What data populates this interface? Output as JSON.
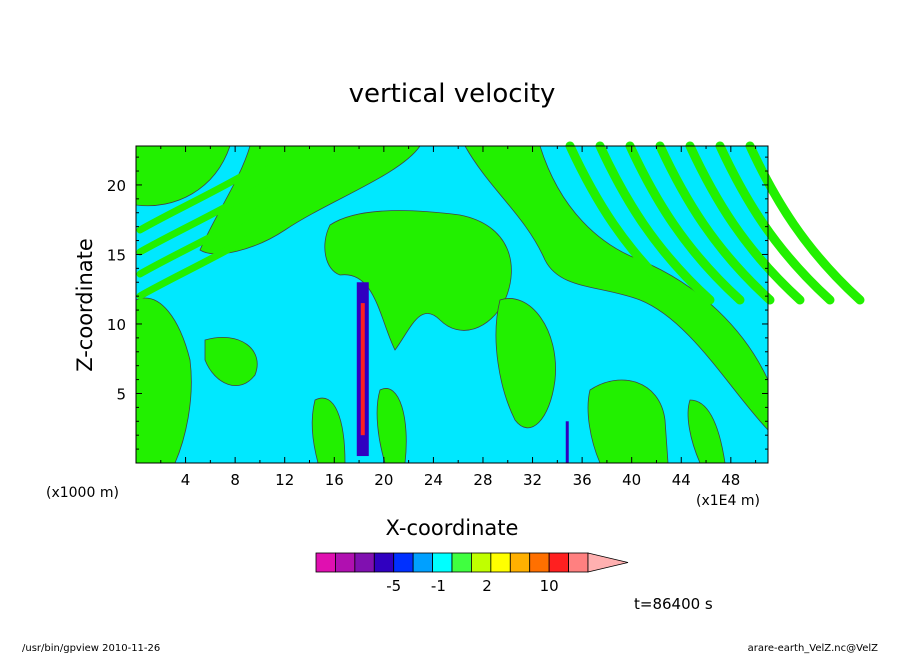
{
  "chart_data": {
    "type": "contour",
    "title": "vertical velocity",
    "xlabel": "X-coordinate",
    "ylabel": "Z-coordinate",
    "x_unit_left": "(x1000 m)",
    "x_unit_right": "(x1E4 m)",
    "xticks": [
      "4",
      "8",
      "12",
      "16",
      "20",
      "24",
      "28",
      "32",
      "36",
      "40",
      "44",
      "48"
    ],
    "yticks": [
      "5",
      "10",
      "15",
      "20"
    ],
    "xlim": [
      0,
      51
    ],
    "ylim": [
      0,
      22.8
    ],
    "colorbar": {
      "colors": [
        "#e010b0",
        "#b010b0",
        "#8010b0",
        "#3000c0",
        "#0030ff",
        "#00a0ff",
        "#00ffff",
        "#40ff40",
        "#c0ff00",
        "#ffff00",
        "#ffb000",
        "#ff7000",
        "#ff2020",
        "#ff8080",
        "#ffb0b0"
      ],
      "labels": [
        "-5",
        "-1",
        "2",
        "10"
      ],
      "label_positions": [
        -5,
        -1,
        2,
        10
      ]
    },
    "colors": {
      "background_field": "#00e8ff",
      "positive_field": "#22f000",
      "contour_line": "#444444"
    }
  },
  "time_label": "t=86400 s",
  "footer": {
    "left": "/usr/bin/gpview 2010-11-26",
    "right": "arare-earth_VelZ.nc@VelZ"
  }
}
